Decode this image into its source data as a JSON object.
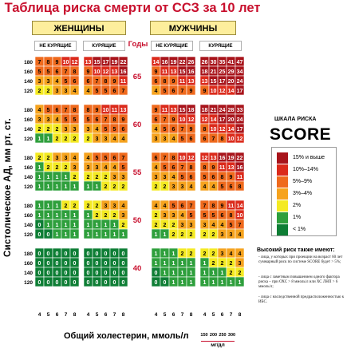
{
  "title": "Таблица риска смерти от ССЗ за 10 лет",
  "header": {
    "women": "ЖЕНЩИНЫ",
    "men": "МУЖЧИНЫ",
    "non_smoking": "НЕ КУРЯЩИЕ",
    "smoking": "КУРЯЩИЕ",
    "years": "Годы"
  },
  "legend": {
    "small_title": "ШКАЛА РИСКА",
    "big_title": "SCORE",
    "items": [
      {
        "label": "15% и выше",
        "color": "#a8141b"
      },
      {
        "label": "10%–14%",
        "color": "#db2a1b"
      },
      {
        "label": "5%–9%",
        "color": "#ef6a1d"
      },
      {
        "label": "3%–4%",
        "color": "#f6a31e"
      },
      {
        "label": "2%",
        "color": "#f4ea22"
      },
      {
        "label": "1%",
        "color": "#2e9f3c"
      },
      {
        "label": "< 1%",
        "color": "#0e7e35"
      }
    ]
  },
  "notes": {
    "title": "Высокий риск также имеют:",
    "items": [
      "- лица, у которых при проекции на возраст 60 лет суммарный риск по системе SCORE будет > 5%;",
      "- лица с заметным повышением одного фактора риска – при ОХС > 8 ммоль/л или ХС ЛНП > 6 ммоль/л;",
      "- лица с наследственной предрасположенностью к ИБС."
    ]
  },
  "chart_data": {
    "type": "heatmap",
    "title": "Таблица риска смерти от ССЗ за 10 лет",
    "ylabel": "Систолическое АД, мм рт. ст.",
    "xlabel": "Общий холестерин, ммоль/л",
    "x_ticks": [
      4,
      5,
      6,
      7,
      8
    ],
    "y_ticks": [
      180,
      160,
      140,
      120
    ],
    "ages": [
      65,
      60,
      55,
      50,
      40
    ],
    "groups": [
      "Женщины, не курящие",
      "Женщины, курящие",
      "Мужчины, не курящие",
      "Мужчины, курящие"
    ],
    "secondary_x_unit": "мг/дл",
    "secondary_x_ticks": [
      150,
      200,
      250,
      300
    ],
    "risk": {
      "65": [
        [
          [
            7,
            8,
            9,
            10,
            12
          ],
          [
            5,
            5,
            6,
            7,
            8
          ],
          [
            3,
            3,
            4,
            5,
            6
          ],
          [
            2,
            2,
            3,
            3,
            4
          ]
        ],
        [
          [
            13,
            15,
            17,
            19,
            22
          ],
          [
            9,
            10,
            12,
            13,
            16
          ],
          [
            6,
            7,
            8,
            9,
            11
          ],
          [
            4,
            5,
            5,
            6,
            7
          ]
        ],
        [
          [
            14,
            16,
            19,
            22,
            26
          ],
          [
            9,
            11,
            13,
            15,
            16
          ],
          [
            6,
            8,
            9,
            11,
            13
          ],
          [
            4,
            5,
            6,
            7,
            9
          ]
        ],
        [
          [
            26,
            30,
            35,
            41,
            47
          ],
          [
            18,
            21,
            25,
            29,
            34
          ],
          [
            13,
            15,
            17,
            20,
            24
          ],
          [
            9,
            10,
            12,
            14,
            17
          ]
        ]
      ],
      "60": [
        [
          [
            4,
            5,
            6,
            7,
            8
          ],
          [
            3,
            3,
            4,
            5,
            5
          ],
          [
            2,
            2,
            2,
            3,
            3
          ],
          [
            1,
            1,
            2,
            2,
            2
          ]
        ],
        [
          [
            8,
            9,
            10,
            11,
            13
          ],
          [
            5,
            6,
            7,
            8,
            9
          ],
          [
            3,
            4,
            5,
            5,
            6
          ],
          [
            2,
            3,
            3,
            4,
            4
          ]
        ],
        [
          [
            9,
            11,
            13,
            15,
            18
          ],
          [
            6,
            7,
            9,
            10,
            12
          ],
          [
            4,
            5,
            6,
            7,
            9
          ],
          [
            3,
            3,
            4,
            5,
            6
          ]
        ],
        [
          [
            18,
            21,
            24,
            28,
            33
          ],
          [
            12,
            14,
            17,
            20,
            24
          ],
          [
            8,
            10,
            12,
            14,
            17
          ],
          [
            6,
            7,
            8,
            10,
            12
          ]
        ]
      ],
      "55": [
        [
          [
            2,
            2,
            3,
            3,
            4
          ],
          [
            1,
            2,
            2,
            2,
            3
          ],
          [
            1,
            1,
            1,
            1,
            2
          ],
          [
            1,
            1,
            1,
            1,
            1
          ]
        ],
        [
          [
            4,
            5,
            5,
            6,
            7
          ],
          [
            3,
            3,
            4,
            4,
            5
          ],
          [
            2,
            2,
            2,
            3,
            3
          ],
          [
            1,
            1,
            2,
            2,
            2
          ]
        ],
        [
          [
            6,
            7,
            8,
            10,
            12
          ],
          [
            4,
            5,
            6,
            7,
            8
          ],
          [
            3,
            3,
            4,
            5,
            6
          ],
          [
            2,
            2,
            3,
            3,
            4
          ]
        ],
        [
          [
            12,
            13,
            16,
            19,
            22
          ],
          [
            8,
            9,
            11,
            13,
            16
          ],
          [
            5,
            6,
            8,
            9,
            11
          ],
          [
            4,
            4,
            5,
            6,
            8
          ]
        ]
      ],
      "50": [
        [
          [
            1,
            1,
            1,
            2,
            2
          ],
          [
            1,
            1,
            1,
            1,
            1
          ],
          [
            0,
            1,
            1,
            1,
            1
          ],
          [
            0,
            0,
            1,
            1,
            1
          ]
        ],
        [
          [
            2,
            2,
            3,
            3,
            4
          ],
          [
            1,
            2,
            2,
            2,
            3
          ],
          [
            1,
            1,
            1,
            1,
            2
          ],
          [
            1,
            1,
            1,
            1,
            1
          ]
        ],
        [
          [
            4,
            4,
            5,
            6,
            7
          ],
          [
            2,
            3,
            3,
            4,
            5
          ],
          [
            2,
            2,
            2,
            3,
            3
          ],
          [
            1,
            1,
            2,
            2,
            2
          ]
        ],
        [
          [
            7,
            8,
            9,
            11,
            14
          ],
          [
            5,
            5,
            6,
            8,
            10
          ],
          [
            3,
            4,
            4,
            5,
            7
          ],
          [
            2,
            2,
            3,
            3,
            4
          ]
        ]
      ],
      "40": [
        [
          [
            0,
            0,
            0,
            0,
            0
          ],
          [
            0,
            0,
            0,
            0,
            0
          ],
          [
            0,
            0,
            0,
            0,
            0
          ],
          [
            0,
            0,
            0,
            0,
            0
          ]
        ],
        [
          [
            0,
            0,
            0,
            0,
            0
          ],
          [
            0,
            0,
            0,
            0,
            0
          ],
          [
            0,
            0,
            0,
            0,
            0
          ],
          [
            0,
            0,
            0,
            0,
            0
          ]
        ],
        [
          [
            1,
            1,
            1,
            2,
            2
          ],
          [
            1,
            1,
            1,
            1,
            1
          ],
          [
            0,
            1,
            1,
            1,
            1
          ],
          [
            0,
            0,
            1,
            1,
            1
          ]
        ],
        [
          [
            2,
            2,
            3,
            4,
            4
          ],
          [
            1,
            2,
            2,
            2,
            3
          ],
          [
            1,
            1,
            1,
            2,
            2
          ],
          [
            1,
            1,
            1,
            1,
            1
          ]
        ]
      ]
    }
  }
}
